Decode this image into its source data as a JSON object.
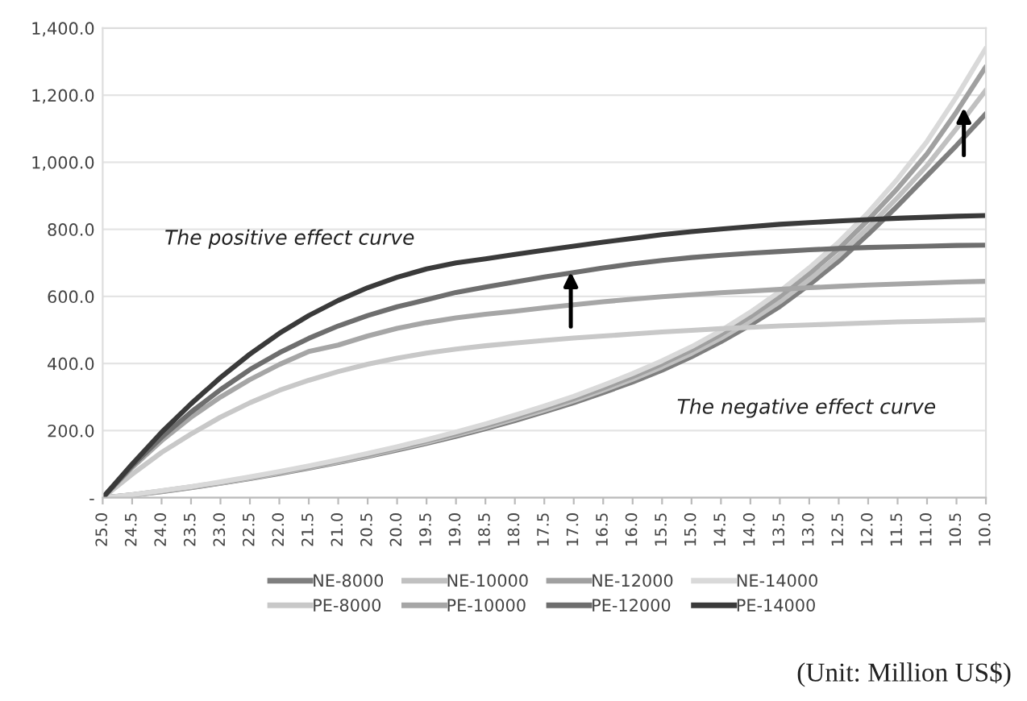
{
  "chart_data": {
    "type": "line",
    "categories": [
      "25.0",
      "24.5",
      "24.0",
      "23.5",
      "23.0",
      "22.5",
      "22.0",
      "21.5",
      "21.0",
      "20.5",
      "20.0",
      "19.5",
      "19.0",
      "18.5",
      "18.0",
      "17.5",
      "17.0",
      "16.5",
      "16.0",
      "15.5",
      "15.0",
      "14.5",
      "14.0",
      "13.5",
      "13.0",
      "12.5",
      "12.0",
      "11.5",
      "11.0",
      "10.5",
      "10.0"
    ],
    "series": [
      {
        "name": "NE-8000",
        "color": "#7f7f7f",
        "values": [
          0,
          8,
          18,
          30,
          43,
          57,
          72,
          88,
          105,
          123,
          142,
          162,
          183,
          206,
          230,
          256,
          283,
          313,
          345,
          380,
          420,
          465,
          515,
          570,
          635,
          705,
          785,
          870,
          960,
          1050,
          1145
        ]
      },
      {
        "name": "NE-10000",
        "color": "#c0c0c0",
        "values": [
          0,
          8,
          19,
          31,
          44,
          58,
          74,
          90,
          107,
          125,
          145,
          165,
          187,
          210,
          235,
          261,
          289,
          320,
          353,
          390,
          430,
          476,
          527,
          584,
          650,
          722,
          805,
          895,
          990,
          1100,
          1215
        ]
      },
      {
        "name": "NE-12000",
        "color": "#a0a0a0",
        "values": [
          0,
          9,
          20,
          32,
          45,
          60,
          76,
          92,
          110,
          128,
          148,
          169,
          191,
          215,
          240,
          267,
          295,
          327,
          361,
          399,
          440,
          487,
          540,
          600,
          668,
          742,
          828,
          922,
          1025,
          1150,
          1285
        ]
      },
      {
        "name": "NE-14000",
        "color": "#d9d9d9",
        "values": [
          0,
          9,
          21,
          33,
          47,
          62,
          78,
          95,
          113,
          132,
          152,
          173,
          196,
          220,
          246,
          273,
          302,
          335,
          370,
          408,
          450,
          498,
          553,
          615,
          685,
          762,
          850,
          950,
          1062,
          1195,
          1340
        ]
      },
      {
        "name": "PE-8000",
        "color": "#c8c8c8",
        "values": [
          0,
          70,
          135,
          190,
          240,
          283,
          320,
          350,
          376,
          398,
          416,
          431,
          443,
          453,
          461,
          469,
          476,
          482,
          488,
          494,
          499,
          504,
          508,
          512,
          515,
          518,
          521,
          524,
          526,
          528,
          530
        ]
      },
      {
        "name": "PE-10000",
        "color": "#a6a6a6",
        "values": [
          0,
          90,
          170,
          240,
          300,
          352,
          397,
          436,
          455,
          482,
          505,
          522,
          536,
          547,
          556,
          566,
          575,
          584,
          592,
          599,
          605,
          611,
          616,
          621,
          626,
          630,
          634,
          637,
          640,
          643,
          645
        ]
      },
      {
        "name": "PE-12000",
        "color": "#6e6e6e",
        "values": [
          0,
          95,
          180,
          255,
          322,
          382,
          432,
          475,
          512,
          543,
          569,
          590,
          612,
          628,
          643,
          658,
          671,
          685,
          697,
          707,
          716,
          723,
          729,
          734,
          739,
          743,
          746,
          748,
          750,
          752,
          753
        ]
      },
      {
        "name": "PE-14000",
        "color": "#3a3a3a",
        "values": [
          0,
          100,
          195,
          280,
          358,
          428,
          490,
          543,
          588,
          626,
          657,
          682,
          700,
          712,
          725,
          738,
          750,
          762,
          773,
          784,
          793,
          801,
          808,
          815,
          820,
          825,
          829,
          833,
          836,
          839,
          841
        ]
      }
    ],
    "ylim": [
      0,
      1400
    ],
    "yticks": [
      {
        "value": 0,
        "label": "-"
      },
      {
        "value": 200,
        "label": "200.0"
      },
      {
        "value": 400,
        "label": "400.0"
      },
      {
        "value": 600,
        "label": "600.0"
      },
      {
        "value": 800,
        "label": "800.0"
      },
      {
        "value": 1000,
        "label": "1,000.0"
      },
      {
        "value": 1200,
        "label": "1,200.0"
      },
      {
        "value": 1400,
        "label": "1,400.0"
      }
    ],
    "grid": "y",
    "legend": "bottom",
    "marker": "none",
    "line_style": "solid",
    "annotations": [
      "The positive effect curve",
      "The negative effect curve",
      "(Unit: Million US$)"
    ]
  }
}
